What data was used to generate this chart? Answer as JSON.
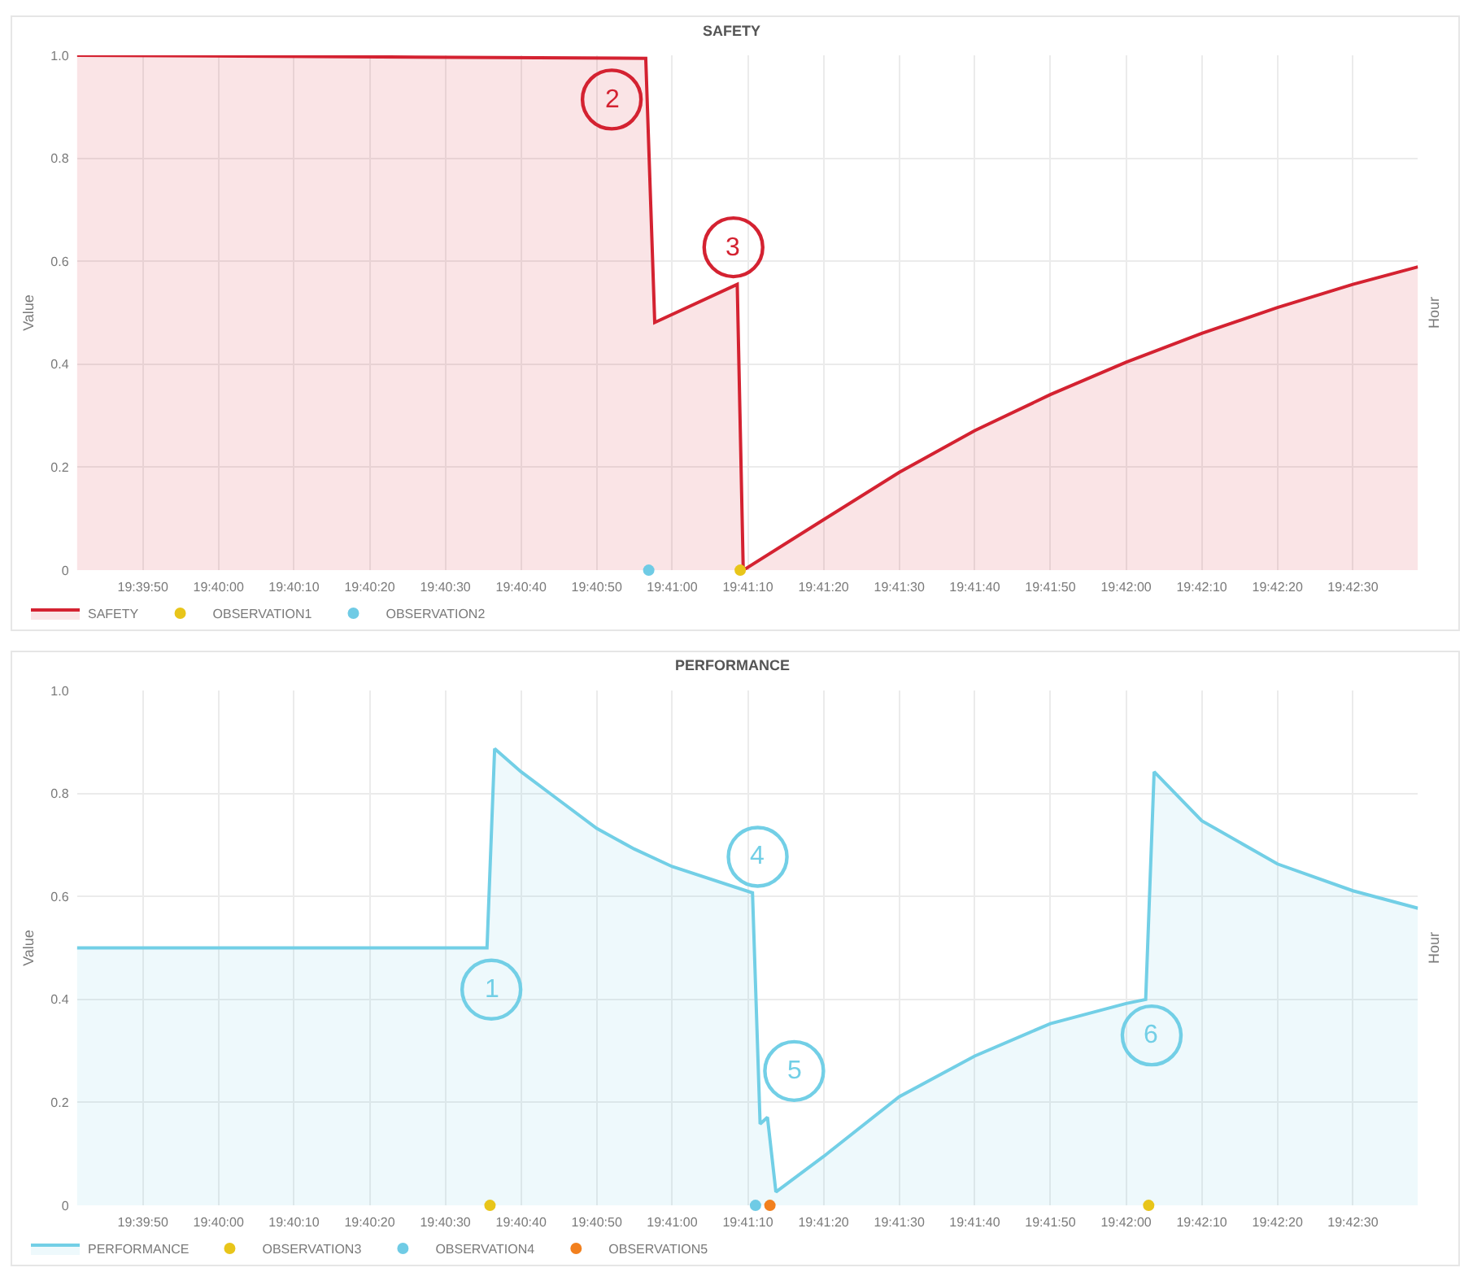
{
  "chart_data": [
    {
      "type": "area",
      "title": "SAFETY",
      "ylabel": "Value",
      "y2label": "Hour",
      "xlim": [
        19.66147,
        19.71072
      ],
      "xticks": [
        {
          "value": 19.66389,
          "label": "19:39:50"
        },
        {
          "value": 19.66667,
          "label": "19:40:00"
        },
        {
          "value": 19.66944,
          "label": "19:40:10"
        },
        {
          "value": 19.67222,
          "label": "19:40:20"
        },
        {
          "value": 19.675,
          "label": "19:40:30"
        },
        {
          "value": 19.67778,
          "label": "19:40:40"
        },
        {
          "value": 19.68056,
          "label": "19:40:50"
        },
        {
          "value": 19.68333,
          "label": "19:41:00"
        },
        {
          "value": 19.68611,
          "label": "19:41:10"
        },
        {
          "value": 19.68889,
          "label": "19:41:20"
        },
        {
          "value": 19.69167,
          "label": "19:41:30"
        },
        {
          "value": 19.69444,
          "label": "19:41:40"
        },
        {
          "value": 19.69722,
          "label": "19:41:50"
        },
        {
          "value": 19.7,
          "label": "19:42:00"
        },
        {
          "value": 19.70278,
          "label": "19:42:10"
        },
        {
          "value": 19.70556,
          "label": "19:42:20"
        },
        {
          "value": 19.70833,
          "label": "19:42:30"
        }
      ],
      "ylim": [
        0,
        1
      ],
      "yticks": [
        0,
        0.2,
        0.4,
        0.6,
        0.8,
        {
          "value": 1,
          "label": "1.0"
        }
      ],
      "grid": true,
      "legend": "bottom left",
      "series": [
        {
          "name": "SAFETY",
          "color": "#d42231",
          "x": [
            19.66147,
            19.68236,
            19.68269,
            19.68572,
            19.68594,
            19.68889,
            19.69167,
            19.69444,
            19.69722,
            19.7,
            19.70278,
            19.70556,
            19.70833,
            19.71072
          ],
          "values": [
            1.0,
            0.994,
            0.481,
            0.555,
            0,
            0.098,
            0.19,
            0.271,
            0.341,
            0.404,
            0.46,
            0.51,
            0.555,
            0.589
          ]
        },
        {
          "name": "OBSERVATION1",
          "type": "scatter",
          "marker": "circle",
          "color": "#e8c51a",
          "x": [
            19.68583
          ],
          "values": [
            0
          ]
        },
        {
          "name": "OBSERVATION2",
          "type": "scatter",
          "marker": "circle",
          "color": "#6fcbe5",
          "x": [
            19.68247
          ],
          "values": [
            0
          ]
        }
      ],
      "annotations": [
        {
          "text": "2",
          "x": 19.68111,
          "y": 0.914
        },
        {
          "text": "3",
          "x": 19.68558,
          "y": 0.627
        }
      ]
    },
    {
      "type": "area",
      "title": "PERFORMANCE",
      "ylabel": "Value",
      "y2label": "Hour",
      "xlim": [
        19.66147,
        19.71072
      ],
      "xticks": [
        {
          "value": 19.66389,
          "label": "19:39:50"
        },
        {
          "value": 19.66667,
          "label": "19:40:00"
        },
        {
          "value": 19.66944,
          "label": "19:40:10"
        },
        {
          "value": 19.67222,
          "label": "19:40:20"
        },
        {
          "value": 19.675,
          "label": "19:40:30"
        },
        {
          "value": 19.67778,
          "label": "19:40:40"
        },
        {
          "value": 19.68056,
          "label": "19:40:50"
        },
        {
          "value": 19.68333,
          "label": "19:41:00"
        },
        {
          "value": 19.68611,
          "label": "19:41:10"
        },
        {
          "value": 19.68889,
          "label": "19:41:20"
        },
        {
          "value": 19.69167,
          "label": "19:41:30"
        },
        {
          "value": 19.69444,
          "label": "19:41:40"
        },
        {
          "value": 19.69722,
          "label": "19:41:50"
        },
        {
          "value": 19.7,
          "label": "19:42:00"
        },
        {
          "value": 19.70278,
          "label": "19:42:10"
        },
        {
          "value": 19.70556,
          "label": "19:42:20"
        },
        {
          "value": 19.70833,
          "label": "19:42:30"
        }
      ],
      "ylim": [
        0,
        1
      ],
      "yticks": [
        0,
        0.2,
        0.4,
        0.6,
        0.8,
        {
          "value": 1,
          "label": "1.0"
        }
      ],
      "grid": true,
      "legend": "bottom left",
      "series": [
        {
          "name": "PERFORMANCE",
          "color": "#72cfe6",
          "x": [
            19.66147,
            19.67653,
            19.67681,
            19.67778,
            19.67917,
            19.68056,
            19.68194,
            19.68333,
            19.68628,
            19.68656,
            19.68683,
            19.68714,
            19.68889,
            19.69167,
            19.69444,
            19.69722,
            19.7,
            19.70072,
            19.70103,
            19.70278,
            19.70556,
            19.70833,
            19.71072
          ],
          "values": [
            0.5,
            0.5,
            0.887,
            0.842,
            0.787,
            0.732,
            0.692,
            0.658,
            0.607,
            0.158,
            0.171,
            0.026,
            0.095,
            0.211,
            0.29,
            0.353,
            0.392,
            0.4,
            0.842,
            0.747,
            0.663,
            0.611,
            0.577
          ]
        },
        {
          "name": "OBSERVATION3",
          "type": "scatter",
          "marker": "circle",
          "color": "#e8c51a",
          "x": [
            19.67664,
            19.70083
          ],
          "values": [
            0,
            0
          ]
        },
        {
          "name": "OBSERVATION4",
          "type": "scatter",
          "marker": "circle",
          "color": "#6fcbe5",
          "x": [
            19.68639
          ],
          "values": [
            0
          ]
        },
        {
          "name": "OBSERVATION5",
          "type": "scatter",
          "marker": "circle",
          "color": "#f2801e",
          "x": [
            19.68692
          ],
          "values": [
            0
          ]
        }
      ],
      "annotations": [
        {
          "text": "1",
          "x": 19.67669,
          "y": 0.419
        },
        {
          "text": "4",
          "x": 19.68647,
          "y": 0.677
        },
        {
          "text": "5",
          "x": 19.68781,
          "y": 0.261
        },
        {
          "text": "6",
          "x": 19.70094,
          "y": 0.33
        }
      ]
    }
  ]
}
